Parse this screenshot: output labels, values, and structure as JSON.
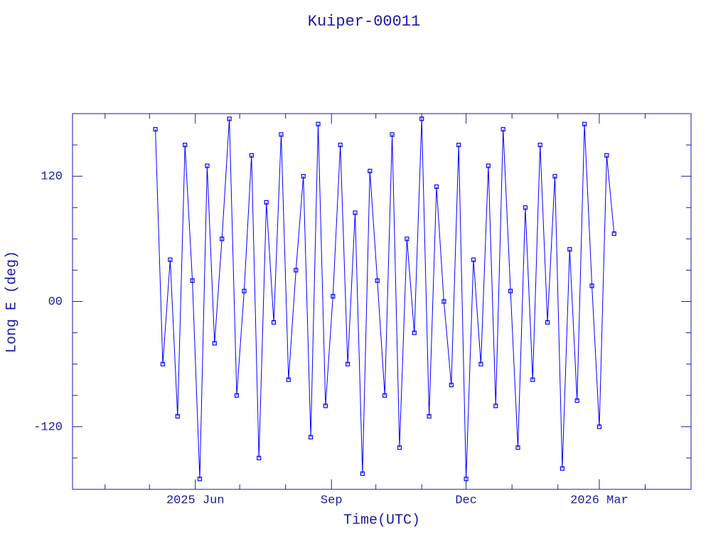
{
  "chart_data": {
    "type": "line",
    "title": "Kuiper-00011",
    "x_label": "Time(UTC)",
    "y_label": "Long E (deg)",
    "xlim": [
      "2025-03-10",
      "2026-05-02"
    ],
    "xticks": [
      {
        "value": "2025-06-01",
        "label": "2025 Jun"
      },
      {
        "value": "2025-09-01",
        "label": "Sep"
      },
      {
        "value": "2025-12-01",
        "label": "Dec"
      },
      {
        "value": "2026-03-01",
        "label": "2026 Mar"
      }
    ],
    "xminorticks": [
      "2025-04-01",
      "2025-05-01",
      "2025-07-01",
      "2025-08-01",
      "2025-10-01",
      "2025-11-01",
      "2026-01-01",
      "2026-02-01",
      "2026-04-01"
    ],
    "ylim": [
      -180,
      180
    ],
    "yticks": [
      -120,
      {
        "value": 0,
        "label": "00"
      },
      120
    ],
    "yminorticks": [
      -150,
      -90,
      -60,
      -30,
      30,
      60,
      90,
      150
    ],
    "x": [
      "2025-05-05",
      "2025-05-10",
      "2025-05-15",
      "2025-05-20",
      "2025-05-25",
      "2025-05-30",
      "2025-06-04",
      "2025-06-09",
      "2025-06-14",
      "2025-06-19",
      "2025-06-24",
      "2025-06-29",
      "2025-07-04",
      "2025-07-09",
      "2025-07-14",
      "2025-07-19",
      "2025-07-24",
      "2025-07-29",
      "2025-08-03",
      "2025-08-08",
      "2025-08-13",
      "2025-08-18",
      "2025-08-23",
      "2025-08-28",
      "2025-09-02",
      "2025-09-07",
      "2025-09-12",
      "2025-09-17",
      "2025-09-22",
      "2025-09-27",
      "2025-10-02",
      "2025-10-07",
      "2025-10-12",
      "2025-10-17",
      "2025-10-22",
      "2025-10-27",
      "2025-11-01",
      "2025-11-06",
      "2025-11-11",
      "2025-11-16",
      "2025-11-21",
      "2025-11-26",
      "2025-12-01",
      "2025-12-06",
      "2025-12-11",
      "2025-12-16",
      "2025-12-21",
      "2025-12-26",
      "2025-12-31",
      "2026-01-05",
      "2026-01-10",
      "2026-01-15",
      "2026-01-20",
      "2026-01-25",
      "2026-01-30",
      "2026-02-04",
      "2026-02-09",
      "2026-02-14",
      "2026-02-19",
      "2026-02-24",
      "2026-03-01",
      "2026-03-06",
      "2026-03-11"
    ],
    "series": [
      {
        "color": "#0000ff",
        "values": [
          165,
          -60,
          40,
          -110,
          150,
          20,
          -170,
          130,
          -40,
          60,
          175,
          -90,
          10,
          140,
          -150,
          95,
          -20,
          160,
          -75,
          30,
          120,
          -130,
          170,
          -100,
          5,
          150,
          -60,
          85,
          -165,
          125,
          20,
          -90,
          160,
          -140,
          60,
          -30,
          175,
          -110,
          110,
          0,
          -80,
          150,
          -170,
          40,
          -60,
          130,
          -100,
          165,
          10,
          -140,
          90,
          -75,
          150,
          -20,
          120,
          -160,
          50,
          -95,
          170,
          15,
          -120,
          140,
          65
        ]
      }
    ]
  }
}
